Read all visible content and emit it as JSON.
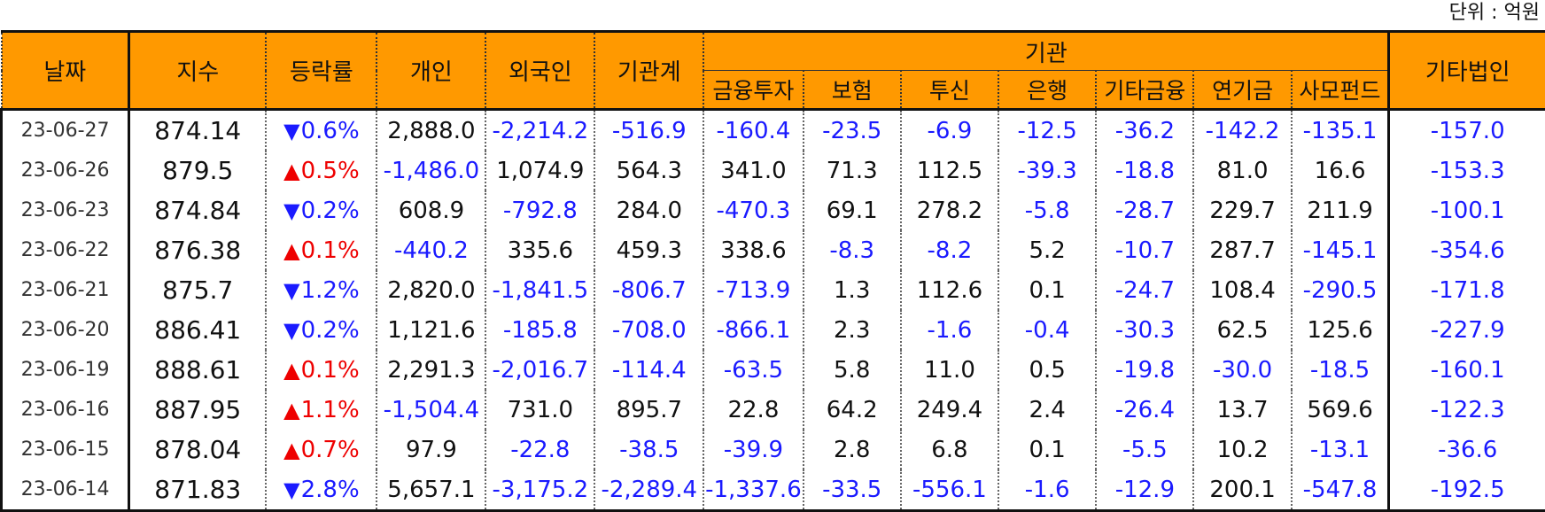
{
  "unit_label": "단위 : 억원",
  "headers": {
    "date": "날짜",
    "index": "지수",
    "change": "등락률",
    "individual": "개인",
    "foreign": "외국인",
    "inst_total": "기관계",
    "inst_group": "기관",
    "inst_sub": [
      "금융투자",
      "보험",
      "투신",
      "은행",
      "기타금융",
      "연기금",
      "사모펀드"
    ],
    "other_corp": "기타법인"
  },
  "colors": {
    "header_bg": "#ff9900",
    "negative": "#1a1aff",
    "up": "#ee0000",
    "down": "#1a1aff"
  },
  "rows": [
    {
      "date": "23-06-27",
      "index": "874.14",
      "dir": "down",
      "change": "0.6%",
      "cells": [
        "2,888.0",
        "-2,214.2",
        "-516.9",
        "-160.4",
        "-23.5",
        "-6.9",
        "-12.5",
        "-36.2",
        "-142.2",
        "-135.1",
        "-157.0"
      ]
    },
    {
      "date": "23-06-26",
      "index": "879.5",
      "dir": "up",
      "change": "0.5%",
      "cells": [
        "-1,486.0",
        "1,074.9",
        "564.3",
        "341.0",
        "71.3",
        "112.5",
        "-39.3",
        "-18.8",
        "81.0",
        "16.6",
        "-153.3"
      ]
    },
    {
      "date": "23-06-23",
      "index": "874.84",
      "dir": "down",
      "change": "0.2%",
      "cells": [
        "608.9",
        "-792.8",
        "284.0",
        "-470.3",
        "69.1",
        "278.2",
        "-5.8",
        "-28.7",
        "229.7",
        "211.9",
        "-100.1"
      ]
    },
    {
      "date": "23-06-22",
      "index": "876.38",
      "dir": "up",
      "change": "0.1%",
      "cells": [
        "-440.2",
        "335.6",
        "459.3",
        "338.6",
        "-8.3",
        "-8.2",
        "5.2",
        "-10.7",
        "287.7",
        "-145.1",
        "-354.6"
      ]
    },
    {
      "date": "23-06-21",
      "index": "875.7",
      "dir": "down",
      "change": "1.2%",
      "cells": [
        "2,820.0",
        "-1,841.5",
        "-806.7",
        "-713.9",
        "1.3",
        "112.6",
        "0.1",
        "-24.7",
        "108.4",
        "-290.5",
        "-171.8"
      ]
    },
    {
      "date": "23-06-20",
      "index": "886.41",
      "dir": "down",
      "change": "0.2%",
      "cells": [
        "1,121.6",
        "-185.8",
        "-708.0",
        "-866.1",
        "2.3",
        "-1.6",
        "-0.4",
        "-30.3",
        "62.5",
        "125.6",
        "-227.9"
      ]
    },
    {
      "date": "23-06-19",
      "index": "888.61",
      "dir": "up",
      "change": "0.1%",
      "cells": [
        "2,291.3",
        "-2,016.7",
        "-114.4",
        "-63.5",
        "5.8",
        "11.0",
        "0.5",
        "-19.8",
        "-30.0",
        "-18.5",
        "-160.1"
      ]
    },
    {
      "date": "23-06-16",
      "index": "887.95",
      "dir": "up",
      "change": "1.1%",
      "cells": [
        "-1,504.4",
        "731.0",
        "895.7",
        "22.8",
        "64.2",
        "249.4",
        "2.4",
        "-26.4",
        "13.7",
        "569.6",
        "-122.3"
      ]
    },
    {
      "date": "23-06-15",
      "index": "878.04",
      "dir": "up",
      "change": "0.7%",
      "cells": [
        "97.9",
        "-22.8",
        "-38.5",
        "-39.9",
        "2.8",
        "6.8",
        "0.1",
        "-5.5",
        "10.2",
        "-13.1",
        "-36.6"
      ]
    },
    {
      "date": "23-06-14",
      "index": "871.83",
      "dir": "down",
      "change": "2.8%",
      "cells": [
        "5,657.1",
        "-3,175.2",
        "-2,289.4",
        "-1,337.6",
        "-33.5",
        "-556.1",
        "-1.6",
        "-12.9",
        "200.1",
        "-547.8",
        "-192.5"
      ]
    }
  ]
}
